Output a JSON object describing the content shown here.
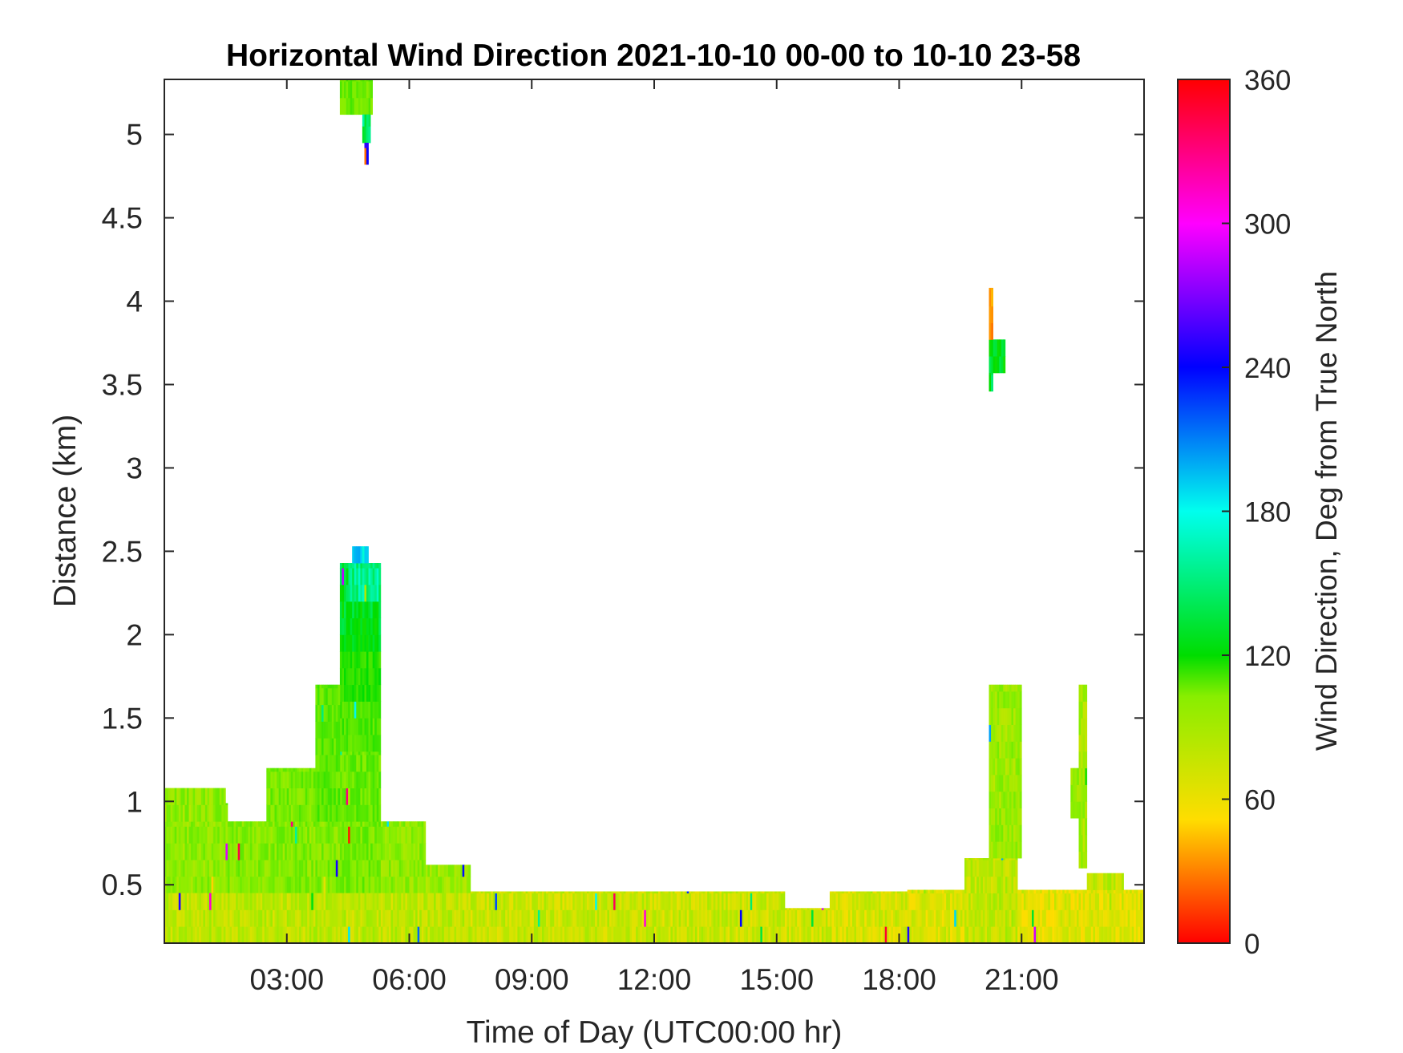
{
  "chart_data": {
    "type": "heatmap",
    "title": "Horizontal Wind Direction 2021-10-10 00-00 to 10-10 23-58",
    "xlabel": "Time of Day (UTC00:00 hr)",
    "ylabel": "Distance (km)",
    "colorbar_label": "Wind Direction, Deg from True North",
    "x_unit": "hours",
    "xlim": [
      0,
      24
    ],
    "ylim": [
      0.15,
      5.33
    ],
    "clim": [
      0,
      360
    ],
    "x_ticks": [
      3,
      6,
      9,
      12,
      15,
      18,
      21
    ],
    "x_tick_labels": [
      "03:00",
      "06:00",
      "09:00",
      "12:00",
      "15:00",
      "18:00",
      "21:00"
    ],
    "y_ticks": [
      0.5,
      1,
      1.5,
      2,
      2.5,
      3,
      3.5,
      4,
      4.5,
      5
    ],
    "y_tick_labels": [
      "0.5",
      "1",
      "1.5",
      "2",
      "2.5",
      "3",
      "3.5",
      "4",
      "4.5",
      "5"
    ],
    "colorbar_ticks": [
      0,
      60,
      120,
      180,
      240,
      300,
      360
    ],
    "colorbar_tick_labels": [
      "0",
      "60",
      "120",
      "180",
      "240",
      "300",
      "360"
    ],
    "colormap": [
      "#ff0000",
      "#ffdd00",
      "#88ee00",
      "#00dd00",
      "#00ffee",
      "#0000ff",
      "#ff00ff",
      "#ff0000"
    ],
    "grid": false,
    "regions": [
      {
        "t0": 0.0,
        "t1": 1.5,
        "z0": 0.15,
        "z1": 0.88,
        "dir": 100
      },
      {
        "t0": 1.5,
        "t1": 4.3,
        "z0": 0.15,
        "z1": 0.88,
        "dir": 105
      },
      {
        "t0": 4.3,
        "t1": 5.3,
        "z0": 0.15,
        "z1": 0.88,
        "dir": 110
      },
      {
        "t0": 5.3,
        "t1": 6.4,
        "z0": 0.15,
        "z1": 0.88,
        "dir": 100
      },
      {
        "t0": 6.4,
        "t1": 7.5,
        "z0": 0.15,
        "z1": 0.62,
        "dir": 95
      },
      {
        "t0": 0.0,
        "t1": 7.5,
        "z0": 0.15,
        "z1": 0.45,
        "dir": 80
      },
      {
        "t0": 7.5,
        "t1": 15.2,
        "z0": 0.15,
        "z1": 0.46,
        "dir": 75
      },
      {
        "t0": 15.2,
        "t1": 16.3,
        "z0": 0.15,
        "z1": 0.36,
        "dir": 72
      },
      {
        "t0": 16.3,
        "t1": 18.2,
        "z0": 0.15,
        "z1": 0.46,
        "dir": 70
      },
      {
        "t0": 18.2,
        "t1": 19.6,
        "z0": 0.15,
        "z1": 0.47,
        "dir": 68
      },
      {
        "t0": 19.6,
        "t1": 20.9,
        "z0": 0.15,
        "z1": 0.66,
        "dir": 80
      },
      {
        "t0": 20.9,
        "t1": 24.0,
        "z0": 0.15,
        "z1": 0.47,
        "dir": 65
      },
      {
        "t0": 0.0,
        "t1": 1.5,
        "z0": 0.88,
        "z1": 1.08,
        "dir": 100
      },
      {
        "t0": 1.5,
        "t1": 1.55,
        "z0": 0.88,
        "z1": 0.99,
        "dir": 108
      },
      {
        "t0": 4.3,
        "t1": 5.3,
        "z0": 0.88,
        "z1": 1.3,
        "dir": 115
      },
      {
        "t0": 4.3,
        "t1": 5.3,
        "z0": 1.3,
        "z1": 1.6,
        "dir": 125
      },
      {
        "t0": 4.3,
        "t1": 5.3,
        "z0": 1.6,
        "z1": 1.9,
        "dir": 140
      },
      {
        "t0": 4.3,
        "t1": 5.3,
        "z0": 1.9,
        "z1": 2.2,
        "dir": 160
      },
      {
        "t0": 4.5,
        "t1": 5.3,
        "z0": 2.2,
        "z1": 2.43,
        "dir": 185
      },
      {
        "t0": 4.6,
        "t1": 5.0,
        "z0": 2.43,
        "z1": 2.53,
        "dir": 210
      },
      {
        "t0": 4.3,
        "t1": 4.5,
        "z0": 2.2,
        "z1": 2.43,
        "dir": 165
      },
      {
        "t0": 4.3,
        "t1": 5.1,
        "z0": 5.12,
        "z1": 5.33,
        "dir": 115
      },
      {
        "t0": 4.85,
        "t1": 5.05,
        "z0": 4.95,
        "z1": 5.12,
        "dir": 175
      },
      {
        "t0": 4.9,
        "t1": 5.0,
        "z0": 4.82,
        "z1": 4.95,
        "dir": 270
      },
      {
        "t0": 20.2,
        "t1": 20.6,
        "z0": 3.57,
        "z1": 3.77,
        "dir": 160
      },
      {
        "t0": 20.2,
        "t1": 20.3,
        "z0": 3.77,
        "z1": 4.08,
        "dir": 40
      },
      {
        "t0": 20.2,
        "t1": 20.3,
        "z0": 3.46,
        "z1": 3.57,
        "dir": 165
      },
      {
        "t0": 2.5,
        "t1": 3.9,
        "z0": 0.88,
        "z1": 1.2,
        "dir": 110
      },
      {
        "t0": 3.7,
        "t1": 4.3,
        "z0": 0.88,
        "z1": 1.7,
        "dir": 120
      },
      {
        "t0": 20.2,
        "t1": 21.0,
        "z0": 0.66,
        "z1": 1.7,
        "dir": 95
      },
      {
        "t0": 22.4,
        "t1": 22.6,
        "z0": 0.6,
        "z1": 1.7,
        "dir": 90
      },
      {
        "t0": 22.2,
        "t1": 22.4,
        "z0": 0.9,
        "z1": 1.2,
        "dir": 100
      },
      {
        "t0": 22.6,
        "t1": 23.5,
        "z0": 0.47,
        "z1": 0.57,
        "dir": 80
      }
    ]
  }
}
